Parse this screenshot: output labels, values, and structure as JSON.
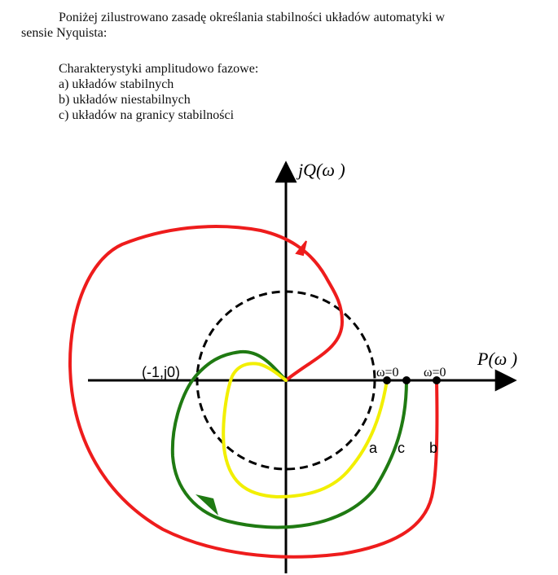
{
  "intro": {
    "line1": "Poniżej zilustrowano zasadę określania stabilności układów automatyki w",
    "line2": "sensie Nyquista:"
  },
  "list": {
    "heading": "Charakterystyki amplitudowo fazowe:",
    "item_a": "a) układów stabilnych",
    "item_b": "b) układów niestabilnych",
    "item_c": "c) układów na granicy stabilności"
  },
  "diagram": {
    "y_axis_label": "jQ(ω )",
    "x_axis_label": "P(ω )",
    "critical_point_label": "(-1,j0)",
    "omega_label_1": "ω=0",
    "omega_label_2": "ω=0",
    "curve_a_label": "a",
    "curve_b_label": "b",
    "curve_c_label": "c",
    "colors": {
      "curve_a": "#f2ef00",
      "curve_b": "#ee1c1c",
      "curve_c": "#1f7a12",
      "axes": "#000000",
      "unit_circle": "#000000"
    }
  }
}
